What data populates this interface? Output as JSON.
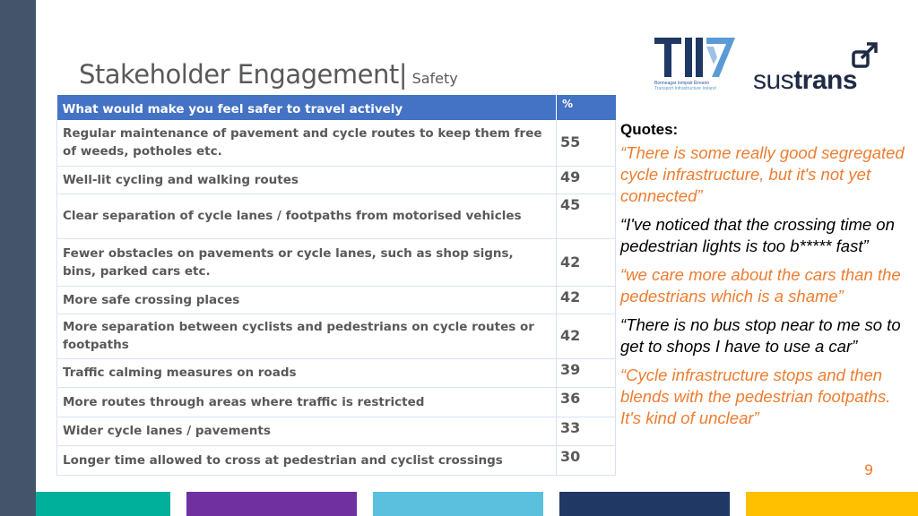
{
  "title": {
    "main": "Stakeholder Engagement",
    "separator": "|",
    "sub": "Safety"
  },
  "logos": {
    "tii_caption_line1": "Bonneagar Iompair Éireann",
    "tii_caption_line2": "Transport Infrastructure Ireland",
    "sustrans_light": "sus",
    "sustrans_bold": "trans"
  },
  "table": {
    "header_question": "What would make you feel safer to travel actively",
    "header_pct": "%",
    "rows": [
      {
        "label": "Regular maintenance of pavement and cycle routes to keep them free of weeds, potholes etc.",
        "value": "55"
      },
      {
        "label": "Well-lit cycling and walking routes",
        "value": "49"
      },
      {
        "label": "Clear separation of cycle lanes / footpaths from motorised vehicles",
        "value": "45"
      },
      {
        "label": "Fewer obstacles on pavements or cycle lanes, such as shop signs, bins, parked cars etc.",
        "value": "42"
      },
      {
        "label": "More safe crossing places",
        "value": "42"
      },
      {
        "label": "More separation between cyclists and pedestrians on cycle routes or footpaths",
        "value": "42"
      },
      {
        "label": "Traffic calming measures on roads",
        "value": "39"
      },
      {
        "label": "More routes through areas where traffic is restricted",
        "value": "36"
      },
      {
        "label": "Wider cycle lanes / pavements",
        "value": "33"
      },
      {
        "label": "Longer time allowed to cross at pedestrian and cyclist crossings",
        "value": "30"
      }
    ]
  },
  "quotes": {
    "title": "Quotes:",
    "items": [
      "“There is some really good segregated cycle infrastructure, but it's not yet connected”",
      "“I've noticed that the crossing time on pedestrian lights is too b***** fast”",
      "“we care more about the cars than the pedestrians which is a shame”",
      "“There is no bus stop near to me so to get to shops I have to use a car”",
      "“Cycle infrastructure stops and then blends with the pedestrian footpaths. It's kind of unclear”"
    ]
  },
  "page_number": "9",
  "colors": {
    "accent_orange": "#ed7d31",
    "header_blue": "#4472c4",
    "left_bar": "#44546a",
    "bottom_teal": "#00b09b",
    "bottom_purple": "#7030a0",
    "bottom_lightblue": "#5bc0de",
    "bottom_navy": "#1f3864",
    "bottom_yellow": "#ffc000"
  }
}
